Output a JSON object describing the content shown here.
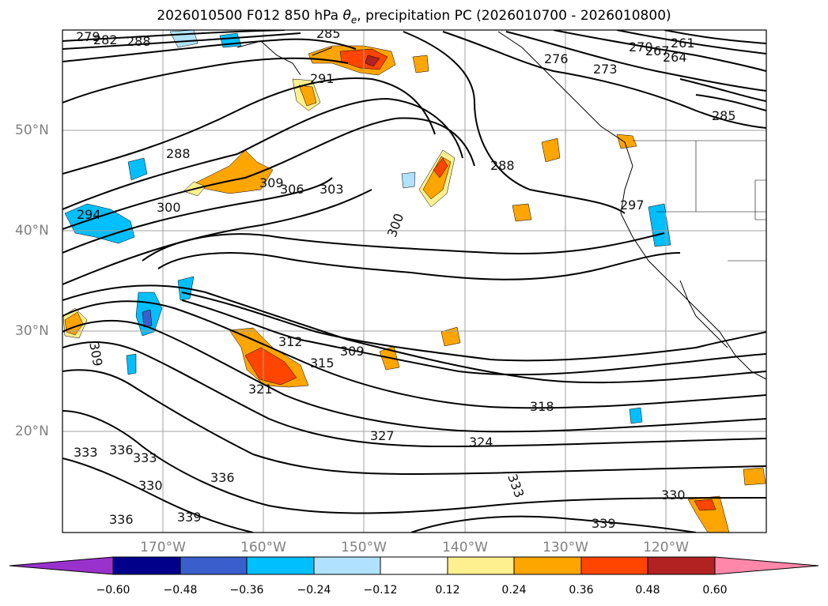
{
  "title_prefix": "2026010500 F012 850 hPa ",
  "title_symbol": "θ",
  "title_subscript": "e",
  "title_suffix": ", precipitation PC (2026010700 - 2026010800)",
  "lat_labels": [
    "50°N",
    "40°N",
    "30°N",
    "20°N"
  ],
  "lon_labels": [
    "170°W",
    "160°W",
    "150°W",
    "140°W",
    "130°W",
    "120°W"
  ],
  "contour_labels": [
    "279",
    "282",
    "288",
    "285",
    "291",
    "288",
    "294",
    "300",
    "309",
    "306",
    "303",
    "300",
    "288",
    "276",
    "273",
    "270",
    "267",
    "264",
    "261",
    "285",
    "297",
    "309",
    "312",
    "315",
    "309",
    "321",
    "318",
    "327",
    "324",
    "333",
    "336",
    "333",
    "330",
    "336",
    "339",
    "333",
    "330",
    "336",
    "339"
  ],
  "colorbar": {
    "colors": [
      "#9932cc",
      "#00008b",
      "#3a5fcd",
      "#00bfff",
      "#b0e2ff",
      "#ffffff",
      "#fff08f",
      "#ffa500",
      "#ff4500",
      "#b22222",
      "#ff88aa"
    ],
    "ticks": [
      "−0.60",
      "−0.48",
      "−0.36",
      "−0.24",
      "−0.12",
      "0.12",
      "0.24",
      "0.36",
      "0.48",
      "0.60"
    ]
  },
  "precip_colors": {
    "light_blue": "#b0e2ff",
    "blue": "#00bfff",
    "dark_blue": "#3a5fcd",
    "yellow": "#fff08f",
    "orange": "#ffa500",
    "red": "#ff4500",
    "dark_red": "#b22222"
  }
}
